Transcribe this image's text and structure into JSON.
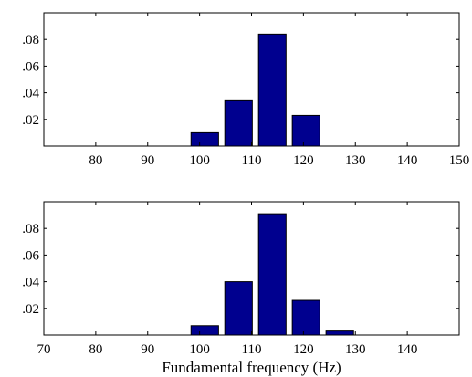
{
  "chart_data": [
    {
      "type": "bar",
      "xlim": [
        70,
        150
      ],
      "ylim": [
        0,
        0.1
      ],
      "xticks": [
        80,
        90,
        100,
        110,
        120,
        130,
        140,
        150
      ],
      "yticks": [
        0.02,
        0.04,
        0.06,
        0.08
      ],
      "x": [
        75,
        81.5,
        88,
        94.5,
        101,
        107.5,
        114,
        120.5,
        127,
        133.5,
        140,
        146.5
      ],
      "values": [
        0,
        0,
        0,
        0,
        0.01,
        0.034,
        0.084,
        0.023,
        0,
        0,
        0,
        0
      ],
      "bar_width": 5.3,
      "xlabel": "",
      "ylabel": "",
      "grid": false
    },
    {
      "type": "bar",
      "xlim": [
        70,
        150
      ],
      "ylim": [
        0,
        0.1
      ],
      "xticks": [
        70,
        80,
        90,
        100,
        110,
        120,
        130,
        140
      ],
      "yticks": [
        0.02,
        0.04,
        0.06,
        0.08
      ],
      "x": [
        75,
        81.5,
        88,
        94.5,
        101,
        107.5,
        114,
        120.5,
        127,
        133.5,
        140,
        146.5
      ],
      "values": [
        0,
        0,
        0,
        0,
        0.007,
        0.04,
        0.091,
        0.026,
        0.003,
        0,
        0,
        0
      ],
      "bar_width": 5.3,
      "xlabel": "Fundamental frequency (Hz)",
      "ylabel": "",
      "grid": false
    }
  ]
}
